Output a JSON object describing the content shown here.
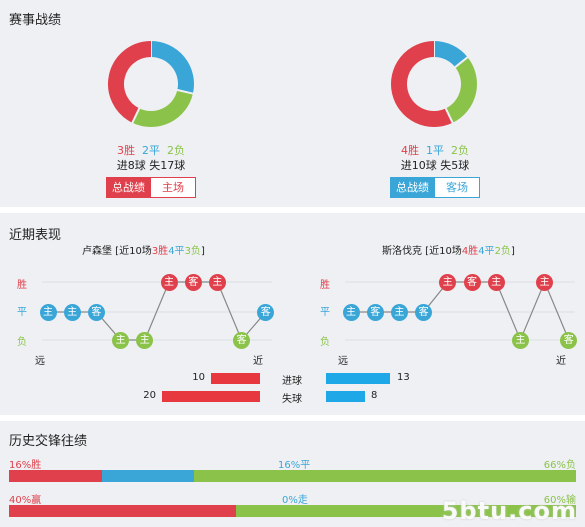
{
  "sections": {
    "record": "赛事战绩",
    "recent": "近期表现",
    "history": "历史交锋往绩"
  },
  "left_team": {
    "name": "卢森堡",
    "wins": "3胜",
    "draws": "2平",
    "losses": "2负",
    "wins_n": 3,
    "draws_n": 2,
    "losses_n": 2,
    "goals": "进8球 失17球",
    "btn_total": "总战绩",
    "btn_venue": "主场",
    "recent_prefix": " [近10场",
    "recent_w": "3胜",
    "recent_d": "4平",
    "recent_l": "3负",
    "recent_suffix": "]",
    "results": [
      "d",
      "d",
      "d",
      "l",
      "l",
      "w",
      "w",
      "w",
      "l",
      "d"
    ],
    "venues": [
      "主",
      "主",
      "客",
      "主",
      "主",
      "主",
      "客",
      "主",
      "客",
      "客"
    ],
    "goals_for": "10",
    "goals_against": "20"
  },
  "right_team": {
    "name": "斯洛伐克",
    "wins": "4胜",
    "draws": "1平",
    "losses": "2负",
    "wins_n": 4,
    "draws_n": 1,
    "losses_n": 2,
    "goals": "进10球 失5球",
    "btn_total": "总战绩",
    "btn_venue": "客场",
    "recent_prefix": " [近10场",
    "recent_w": "4胜",
    "recent_d": "4平",
    "recent_l": "2负",
    "recent_suffix": "]",
    "results": [
      "d",
      "d",
      "d",
      "d",
      "w",
      "w",
      "w",
      "l",
      "w",
      "l"
    ],
    "venues": [
      "主",
      "客",
      "主",
      "客",
      "主",
      "客",
      "主",
      "主",
      "主",
      "客"
    ],
    "goals_for": "13",
    "goals_against": "8"
  },
  "axis": {
    "win": "胜",
    "draw": "平",
    "loss": "负",
    "far": "远",
    "near": "近"
  },
  "stats": {
    "goals_for": "进球",
    "goals_against": "失球"
  },
  "history": {
    "row1": {
      "left": "16%胜",
      "mid": "16%平",
      "right": "66%负",
      "a": 16,
      "b": 16,
      "c": 66
    },
    "row2": {
      "left": "40%赢",
      "mid": "0%走",
      "right": "60%输",
      "a": 40,
      "b": 0,
      "c": 60
    }
  },
  "colors": {
    "win": "#e0404c",
    "draw": "#3aa6d8",
    "loss": "#8bc34a",
    "goals_for_bar": "#e8383f",
    "goals_against_bar": "#1fa8e8"
  },
  "watermark": "5btu.com"
}
